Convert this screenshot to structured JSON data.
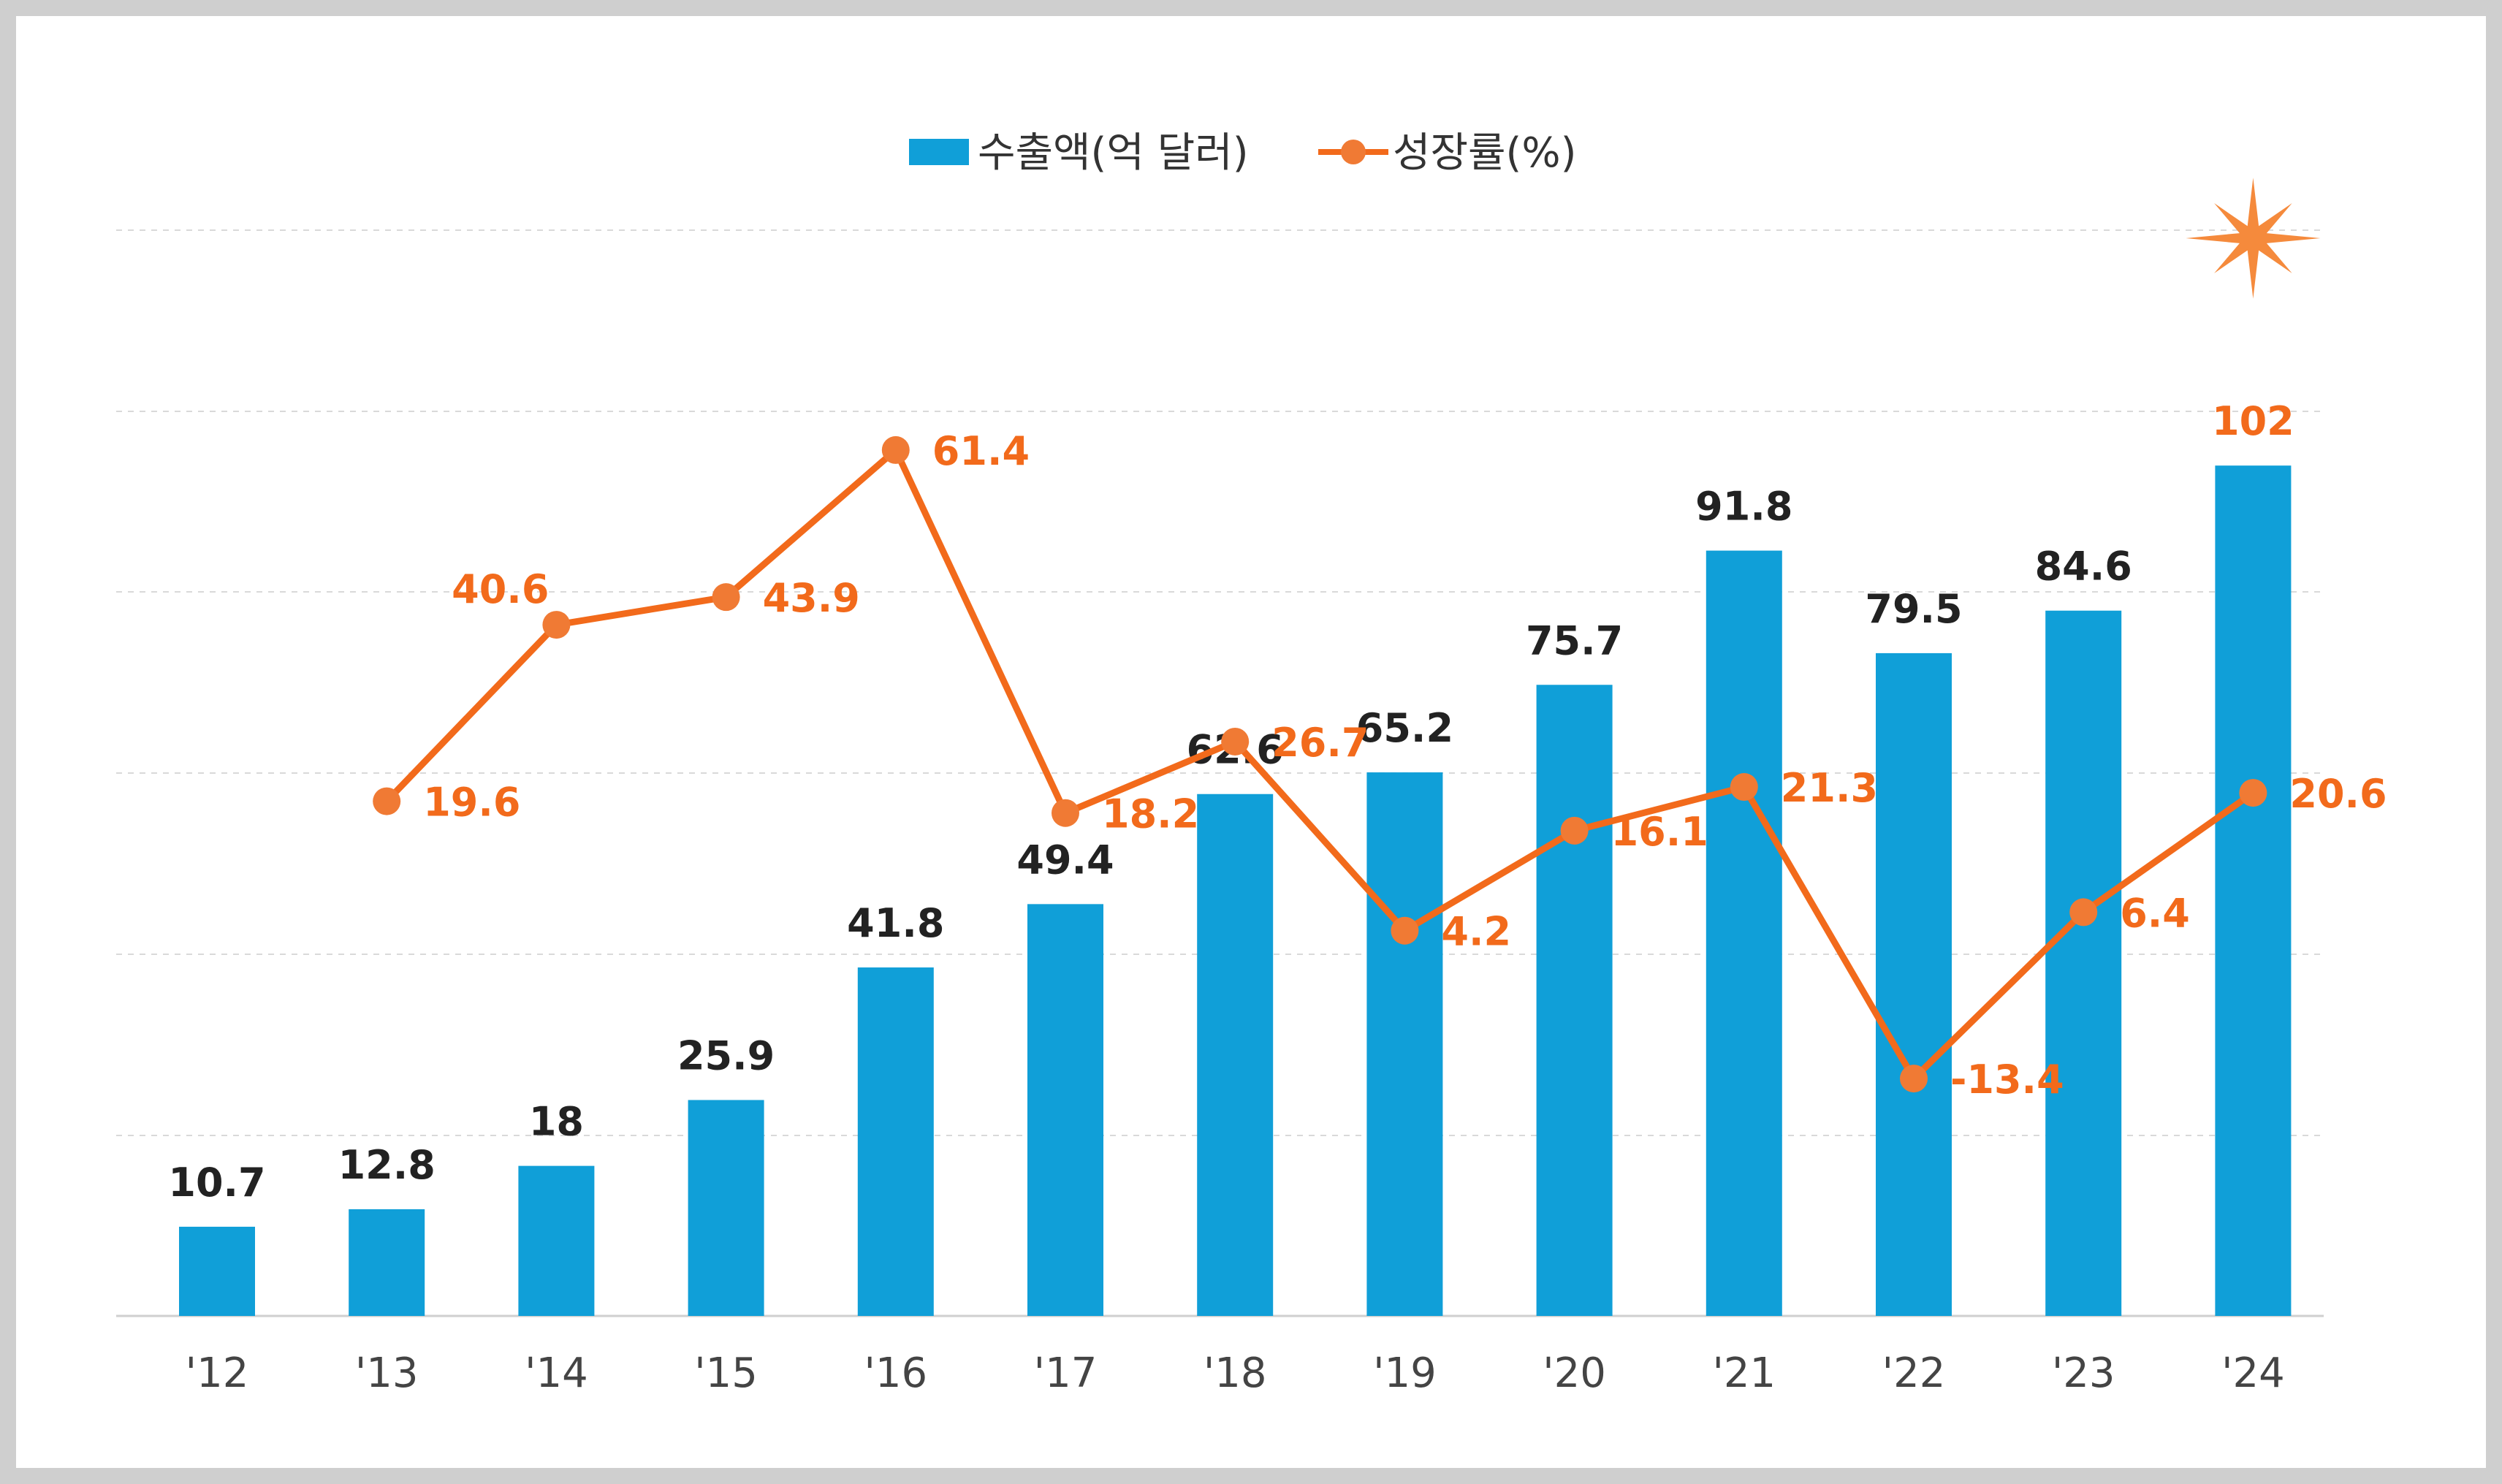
{
  "chart_data": {
    "type": "bar+line",
    "title": "",
    "xlabel": "",
    "ylabel": "",
    "categories": [
      "'12",
      "'13",
      "'14",
      "'15",
      "'16",
      "'17",
      "'18",
      "'19",
      "'20",
      "'21",
      "'22",
      "'23",
      "'24"
    ],
    "series": [
      {
        "name": "수출액(억 달러)",
        "type": "bar",
        "color": "#109fd8",
        "values": [
          10.7,
          12.8,
          18,
          25.9,
          41.8,
          49.4,
          62.6,
          65.2,
          75.7,
          91.8,
          79.5,
          84.6,
          102
        ]
      },
      {
        "name": "성장률(%)",
        "type": "line",
        "color": "#f26a1b",
        "values": [
          null,
          19.6,
          40.6,
          43.9,
          61.4,
          18.2,
          26.7,
          4.2,
          16.1,
          21.3,
          -13.4,
          6.4,
          20.6
        ]
      }
    ],
    "bar_axis_range": [
      0,
      120
    ],
    "line_axis_range": [
      -20,
      80
    ],
    "grid": true,
    "legend_position": "top-center",
    "highlight": {
      "category": "'24",
      "label_color": "#f26a1b",
      "marker": "star-burst"
    }
  }
}
